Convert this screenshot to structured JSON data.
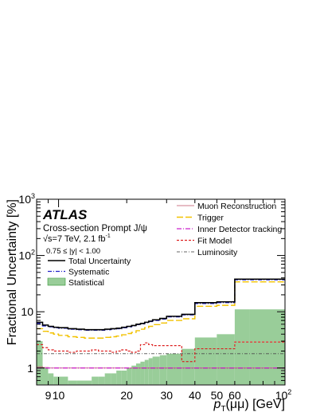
{
  "chart_data": {
    "type": "line",
    "xscale": "log",
    "yscale": "log",
    "xlim": [
      8,
      100
    ],
    "ylim": [
      0.5,
      1000
    ],
    "ylabel": "Fractional Uncertainty [%]",
    "xlabel_main": "p",
    "xlabel_sub": "T",
    "xlabel_rest": "(μμ) [GeV]",
    "x_ticklabels": [
      {
        "v": 9,
        "label": "9"
      },
      {
        "v": 10,
        "label": "10"
      },
      {
        "v": 20,
        "label": "20"
      },
      {
        "v": 30,
        "label": "30"
      },
      {
        "v": 40,
        "label": "40"
      },
      {
        "v": 50,
        "label": "50"
      },
      {
        "v": 60,
        "label": "60"
      }
    ],
    "x_last_tick": {
      "v": 100,
      "base": "10",
      "exp": "2"
    },
    "y_ticklabels": [
      {
        "v": 1,
        "label": "1"
      },
      {
        "v": 10,
        "label": "10"
      },
      {
        "v": 100,
        "base": "10",
        "exp": "2"
      },
      {
        "v": 1000,
        "base": "10",
        "exp": "3"
      }
    ],
    "annotations": {
      "atlas": "ATLAS",
      "line1": "Cross-section Prompt J/ψ",
      "line2_pre": "√s=7 TeV, 2.1 fb",
      "line2_exp": "-1",
      "line3": "0.75 ≤ |y| < 1.00"
    },
    "bin_edges": [
      8,
      8.5,
      9,
      9.5,
      10,
      11,
      12,
      13,
      14,
      15,
      16,
      17,
      18,
      19,
      20,
      21,
      22,
      23,
      24,
      25,
      26,
      28,
      30,
      35,
      40,
      50,
      60,
      70,
      100
    ],
    "series": [
      {
        "name": "Total Uncertainty",
        "key": "total",
        "color": "#000000",
        "dash": "",
        "width": 1.6,
        "values": [
          6.5,
          5.8,
          5.5,
          5.3,
          5.2,
          5.0,
          4.9,
          4.8,
          4.8,
          4.8,
          4.9,
          5.0,
          5.1,
          5.3,
          5.5,
          5.7,
          6.0,
          6.2,
          6.5,
          6.8,
          7.2,
          7.6,
          8.3,
          9.0,
          14.5,
          15.0,
          38,
          38
        ]
      },
      {
        "name": "Systematic",
        "key": "systematic",
        "color": "#2020c8",
        "dash": "5,2,1,2",
        "width": 1.3,
        "values": [
          6.2,
          5.6,
          5.4,
          5.2,
          5.1,
          4.9,
          4.8,
          4.7,
          4.7,
          4.7,
          4.8,
          4.9,
          5.0,
          5.2,
          5.4,
          5.6,
          5.9,
          6.1,
          6.4,
          6.7,
          7.0,
          7.4,
          8.1,
          8.8,
          14.0,
          14.5,
          37,
          37
        ]
      },
      {
        "name": "Trigger",
        "key": "trigger",
        "color": "#f2c200",
        "dash": "8,3",
        "width": 1.4,
        "values": [
          5.0,
          4.5,
          4.2,
          4.0,
          3.8,
          3.6,
          3.5,
          3.4,
          3.4,
          3.4,
          3.5,
          3.6,
          3.7,
          3.9,
          4.1,
          4.3,
          4.6,
          4.9,
          5.2,
          5.5,
          5.9,
          6.3,
          7.0,
          7.5,
          12.5,
          13.0,
          34,
          34
        ]
      },
      {
        "name": "Muon Reconstruction",
        "key": "muon",
        "color": "#cc7a8a",
        "dash": "",
        "width": 1.0,
        "values": [
          1.05,
          1.02,
          1.0,
          1.0,
          1.0,
          1.0,
          1.0,
          1.0,
          1.0,
          1.0,
          1.0,
          1.0,
          1.0,
          1.0,
          1.0,
          1.0,
          1.0,
          1.0,
          1.0,
          1.0,
          1.0,
          1.0,
          1.0,
          1.0,
          1.0,
          1.0,
          1.0,
          1.0
        ]
      },
      {
        "name": "Inner Detector tracking",
        "key": "inner",
        "color": "#cc22cc",
        "dash": "6,2,1,2",
        "width": 1.2,
        "values": [
          1.0,
          1.0,
          1.0,
          1.0,
          1.0,
          1.0,
          1.0,
          1.0,
          1.0,
          1.0,
          1.0,
          1.0,
          1.0,
          1.0,
          1.0,
          1.0,
          1.0,
          1.0,
          1.0,
          1.0,
          1.0,
          1.0,
          1.0,
          1.0,
          1.0,
          1.0,
          1.0,
          1.0
        ]
      },
      {
        "name": "Fit Model",
        "key": "fit",
        "color": "#dd2222",
        "dash": "3,2",
        "width": 1.2,
        "values": [
          2.6,
          2.3,
          2.1,
          2.0,
          2.0,
          1.9,
          2.0,
          2.0,
          2.1,
          2.0,
          2.0,
          1.9,
          2.0,
          2.1,
          2.0,
          1.9,
          2.0,
          2.6,
          2.8,
          2.6,
          2.5,
          2.5,
          2.5,
          1.3,
          2.2,
          2.2,
          2.9,
          2.9
        ]
      },
      {
        "name": "Luminosity",
        "key": "lumi",
        "color": "#666666",
        "dash": "4,2,1,2",
        "width": 1.0,
        "values": [
          1.8,
          1.8,
          1.8,
          1.8,
          1.8,
          1.8,
          1.8,
          1.8,
          1.8,
          1.8,
          1.8,
          1.8,
          1.8,
          1.8,
          1.8,
          1.8,
          1.8,
          1.8,
          1.8,
          1.8,
          1.8,
          1.8,
          1.8,
          1.8,
          1.8,
          1.8,
          1.8,
          1.8
        ]
      }
    ],
    "statistical": {
      "name": "Statistical",
      "color": "#3d9a3d",
      "values": [
        3.0,
        1.0,
        0.8,
        0.7,
        0.7,
        0.6,
        0.6,
        0.6,
        0.7,
        0.7,
        0.8,
        0.8,
        0.9,
        0.9,
        1.0,
        1.1,
        1.2,
        1.3,
        1.4,
        1.5,
        1.6,
        1.7,
        1.8,
        2.2,
        3.5,
        4.0,
        11,
        11
      ]
    },
    "legend_left": [
      "Total Uncertainty",
      "Systematic",
      "Statistical"
    ],
    "legend_right": [
      "Muon Reconstruction",
      "Trigger",
      "Inner Detector tracking",
      "Fit Model",
      "Luminosity"
    ]
  }
}
